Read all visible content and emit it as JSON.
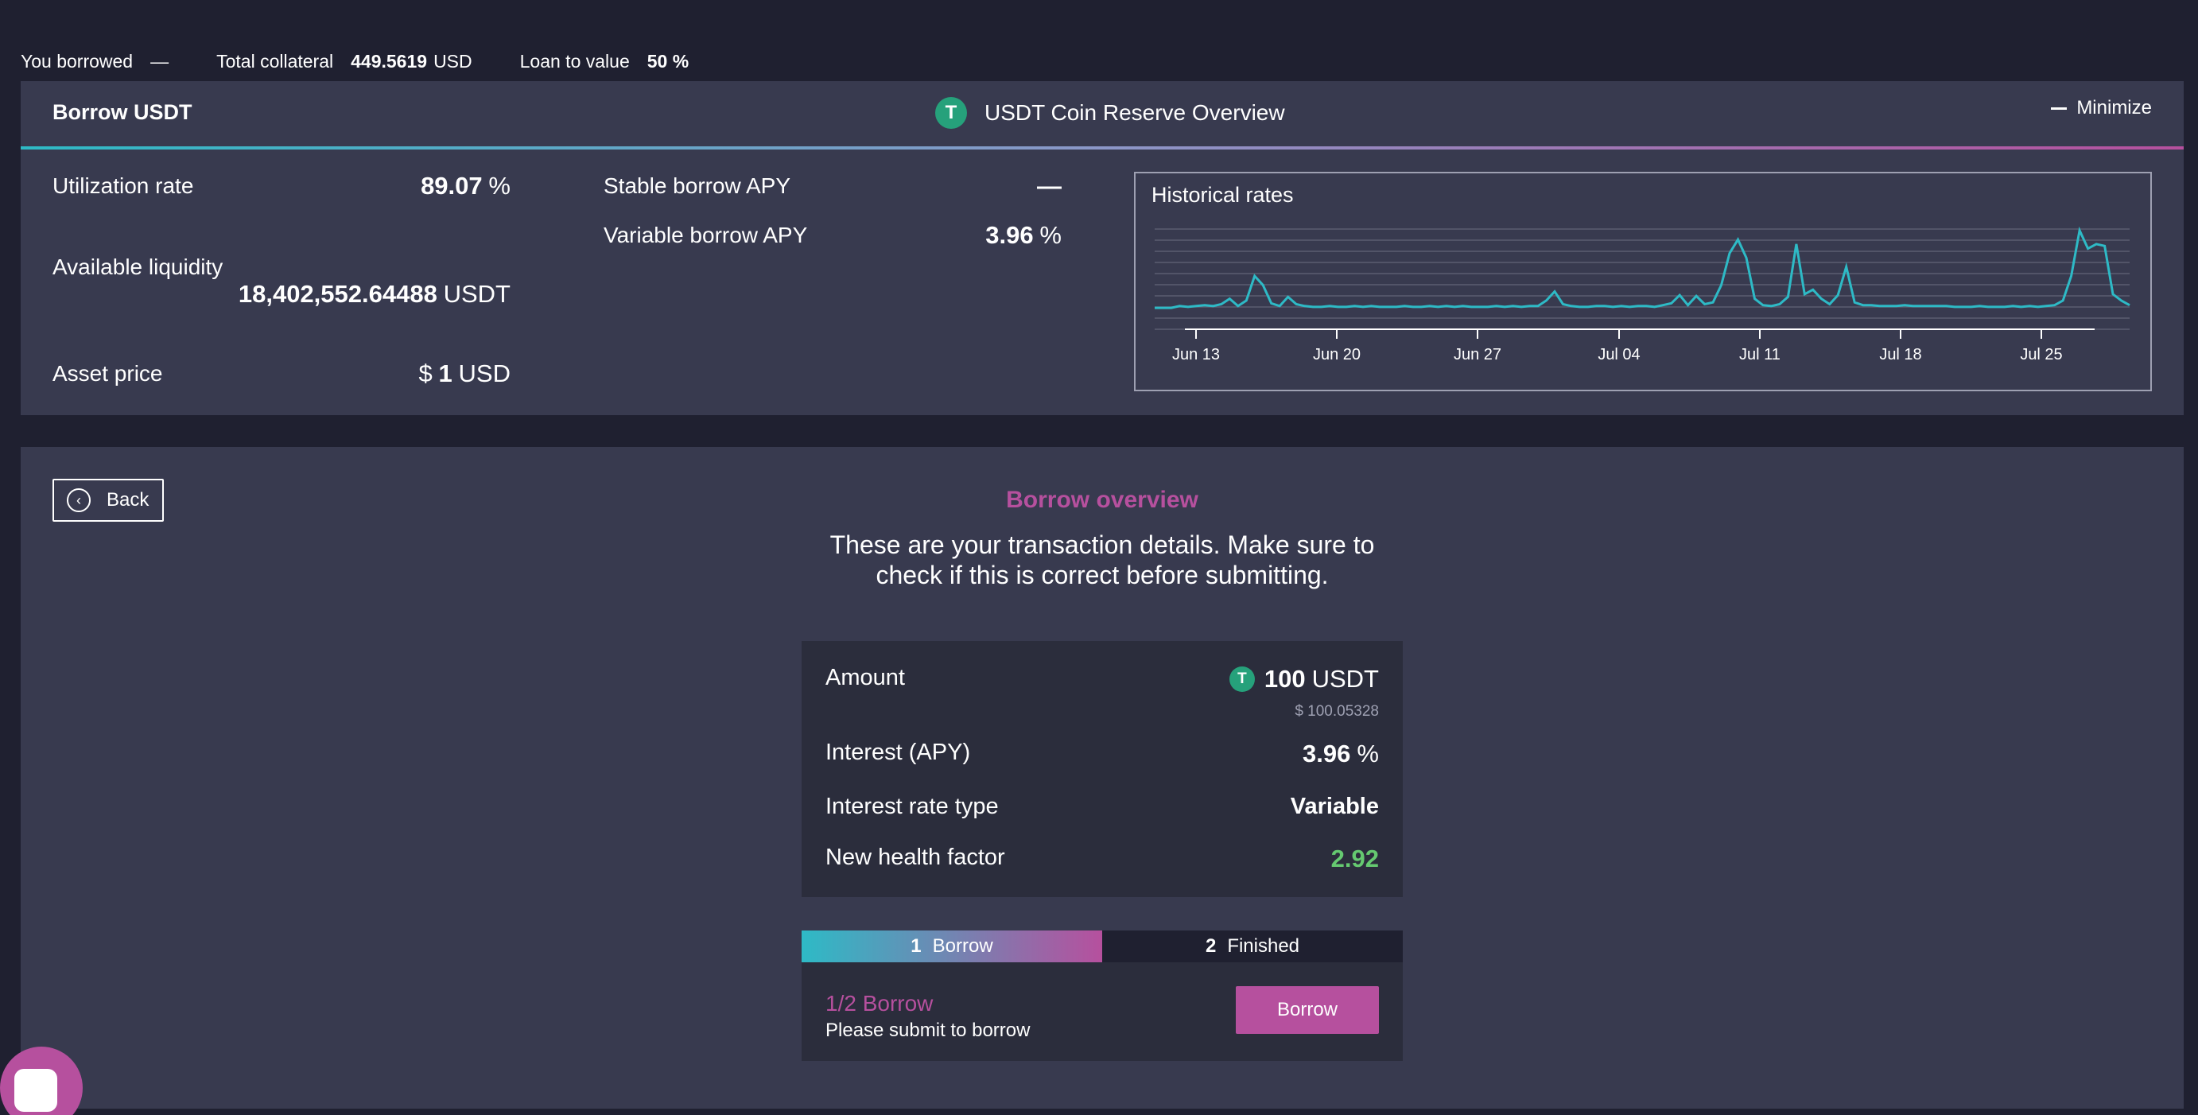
{
  "topbar": {
    "borrowed_label": "You borrowed",
    "borrowed_value": "—",
    "collateral_label": "Total collateral",
    "collateral_value": "449.5619",
    "collateral_unit": "USD",
    "ltv_label": "Loan to value",
    "ltv_value": "50 %"
  },
  "reserve": {
    "title": "Borrow USDT",
    "overview_title": "USDT Coin Reserve Overview",
    "coin_icon": "usdt-icon",
    "minimize_label": "Minimize",
    "utilization_label": "Utilization rate",
    "utilization_value": "89.07",
    "utilization_unit": "%",
    "liquidity_label": "Available liquidity",
    "liquidity_value": "18,402,552.64488",
    "liquidity_unit": "USDT",
    "price_label": "Asset price",
    "price_symbol": "$",
    "price_value": "1",
    "price_unit": "USD",
    "stable_label": "Stable borrow APY",
    "stable_value": "—",
    "variable_label": "Variable borrow APY",
    "variable_value": "3.96",
    "variable_unit": "%"
  },
  "chart_data": {
    "type": "line",
    "title": "Historical rates",
    "x_ticks": [
      "Jun 13",
      "Jun 20",
      "Jun 27",
      "Jul 04",
      "Jul 11",
      "Jul 18",
      "Jul 25"
    ],
    "series": [
      {
        "values": [
          2,
          2,
          2,
          2.2,
          2.1,
          2.2,
          2.3,
          2.2,
          2.4,
          3,
          2.2,
          2.8,
          5.5,
          4.5,
          2.5,
          2.2,
          3.2,
          2.4,
          2.2,
          2.1,
          2.1,
          2.2,
          2.1,
          2.1,
          2.2,
          2.1,
          2.2,
          2.1,
          2.1,
          2.1,
          2.2,
          2.1,
          2.1,
          2.2,
          2.1,
          2.2,
          2.1,
          2.2,
          2.1,
          2.1,
          2.1,
          2.2,
          2.1,
          2.2,
          2.1,
          2.2,
          2.2,
          2.8,
          3.8,
          2.4,
          2.2,
          2.1,
          2.1,
          2.2,
          2.2,
          2.1,
          2.2,
          2.1,
          2.2,
          2.2,
          2.1,
          2.3,
          2.5,
          3.4,
          2.3,
          3.3,
          2.4,
          2.6,
          4.5,
          8,
          9.5,
          7.5,
          3,
          2.3,
          2.2,
          2.4,
          3.2,
          9,
          3.5,
          4,
          3,
          2.4,
          3.4,
          6.5,
          2.6,
          2.3,
          2.3,
          2.2,
          2.2,
          2.2,
          2.3,
          2.2,
          2.2,
          2.2,
          2.2,
          2.2,
          2.1,
          2.1,
          2.1,
          2.2,
          2.1,
          2.1,
          2.1,
          2.2,
          2.1,
          2.2,
          2.1,
          2.2,
          2.3,
          2.8,
          5.5,
          10.5,
          8.5,
          9,
          8.8,
          3.5,
          2.8,
          2.3
        ]
      }
    ]
  },
  "overview": {
    "back_label": "Back",
    "title": "Borrow overview",
    "description": "These are your transaction details. Make sure to check if this is correct before submitting.",
    "amount_label": "Amount",
    "amount_value": "100",
    "amount_unit": "USDT",
    "amount_usd": "$ 100.05328",
    "interest_label": "Interest (APY)",
    "interest_value": "3.96",
    "interest_unit": "%",
    "rate_type_label": "Interest rate type",
    "rate_type_value": "Variable",
    "health_label": "New health factor",
    "health_value": "2.92",
    "accent_color": "#b6509e",
    "health_color": "#65c970"
  },
  "steps": {
    "tabs": [
      {
        "num": "1",
        "label": "Borrow"
      },
      {
        "num": "2",
        "label": "Finished"
      }
    ],
    "status": "1/2 Borrow",
    "hint": "Please submit to borrow",
    "button_label": "Borrow"
  }
}
